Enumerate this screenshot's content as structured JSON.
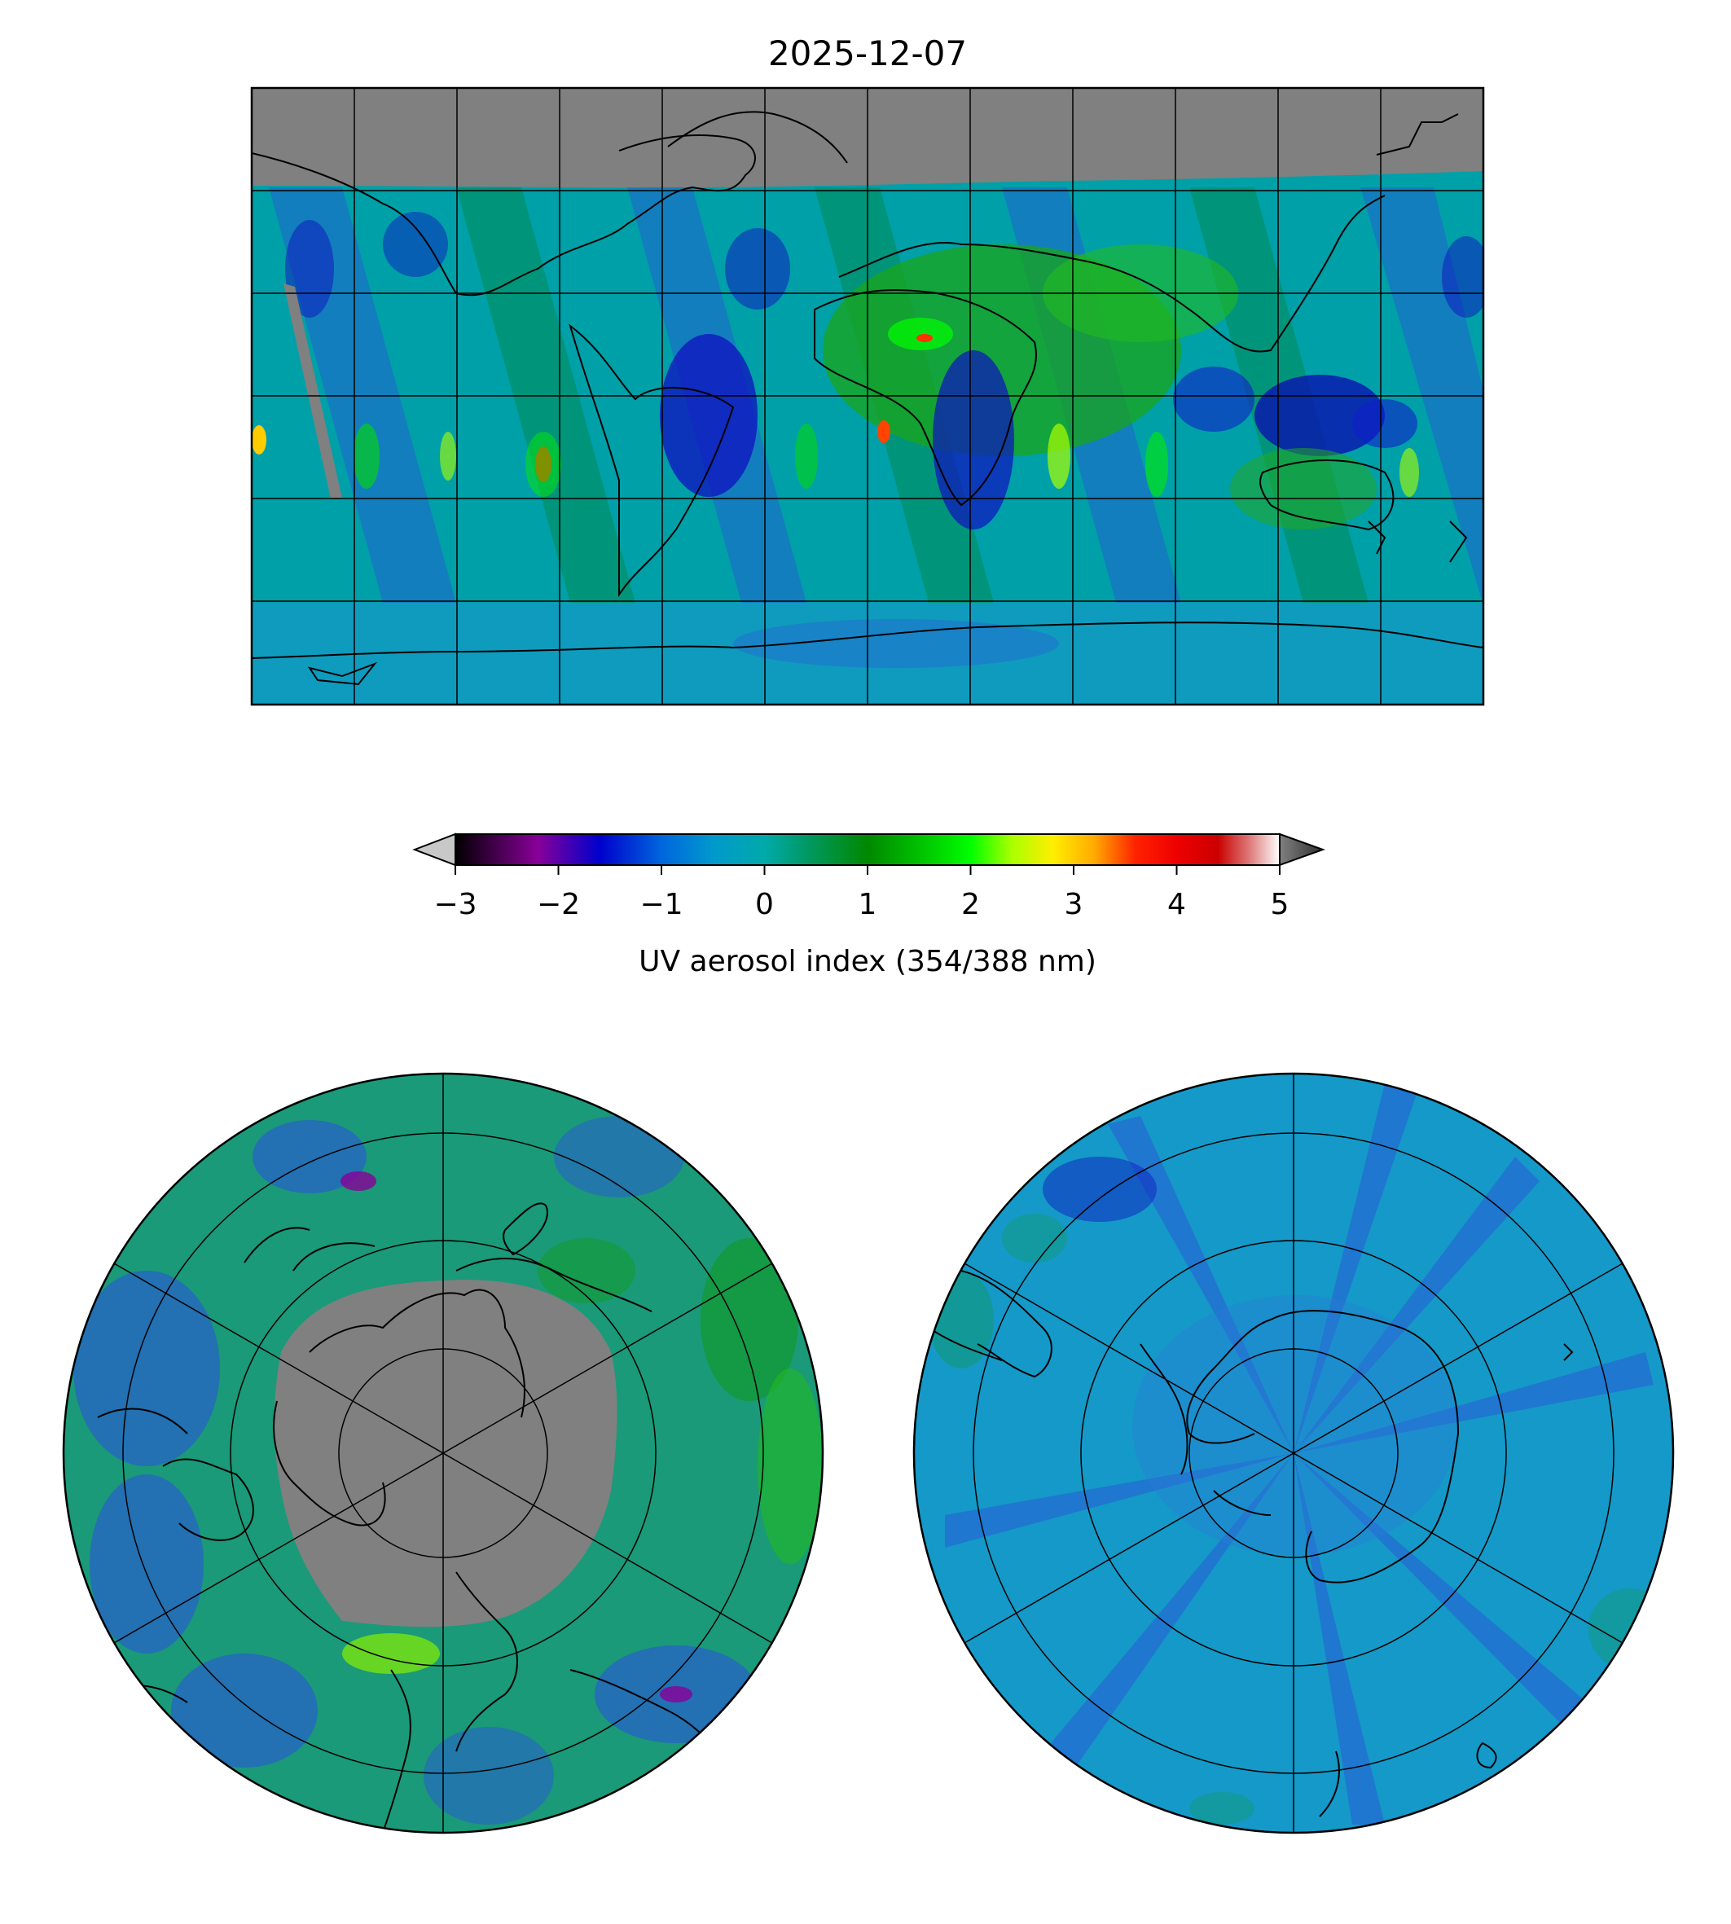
{
  "title": "2025-12-07",
  "colorbar": {
    "label": "UV aerosol index (354/388 nm)",
    "ticks": [
      "−3",
      "−2",
      "−1",
      "0",
      "1",
      "2",
      "3",
      "4",
      "5"
    ],
    "vmin": -3,
    "vmax": 5,
    "extend": "both",
    "under_color": "#c8c8c8",
    "over_color": "#404040",
    "stops": [
      {
        "v": -3.0,
        "c": "#000000"
      },
      {
        "v": -2.2,
        "c": "#880099"
      },
      {
        "v": -1.6,
        "c": "#0000cc"
      },
      {
        "v": -1.0,
        "c": "#0066dd"
      },
      {
        "v": -0.5,
        "c": "#0099cc"
      },
      {
        "v": 0.0,
        "c": "#00aaaa"
      },
      {
        "v": 0.4,
        "c": "#009966"
      },
      {
        "v": 1.0,
        "c": "#008800"
      },
      {
        "v": 1.6,
        "c": "#00cc00"
      },
      {
        "v": 2.0,
        "c": "#00ff00"
      },
      {
        "v": 2.4,
        "c": "#aaff00"
      },
      {
        "v": 2.8,
        "c": "#ffee00"
      },
      {
        "v": 3.2,
        "c": "#ffaa00"
      },
      {
        "v": 3.6,
        "c": "#ff2200"
      },
      {
        "v": 4.0,
        "c": "#ee0000"
      },
      {
        "v": 4.4,
        "c": "#cc0000"
      },
      {
        "v": 4.7,
        "c": "#dd7777"
      },
      {
        "v": 5.0,
        "c": "#ffffff"
      }
    ]
  },
  "maps": {
    "global": {
      "projection": "plate carree",
      "gridlines": true,
      "no_data_color": "#808080",
      "background": "#00a0a8"
    },
    "north_polar": {
      "projection": "north polar stereographic",
      "gridlines": true,
      "no_data_color": "#808080",
      "background": "#1a9a78"
    },
    "south_polar": {
      "projection": "south polar stereographic",
      "gridlines": true,
      "background": "#1599c8"
    }
  }
}
